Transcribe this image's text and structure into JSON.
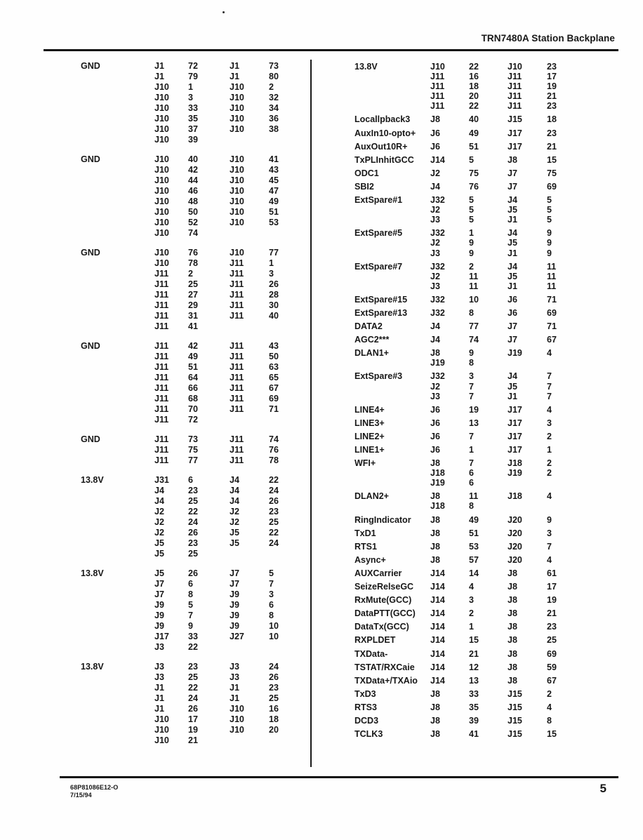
{
  "header": {
    "title": "TRN7480A Station Backplane"
  },
  "footer": {
    "doc_number": "68P81086E12-O",
    "date": "7/15/94",
    "page_number": "5"
  },
  "colors": {
    "text": "#171717",
    "background": "#fefefe",
    "rule": "#121212"
  },
  "pin_table": {
    "left_column": [
      {
        "label": "GND",
        "rows": [
          [
            "J1",
            "72",
            "J1",
            "73"
          ],
          [
            "J1",
            "79",
            "J1",
            "80"
          ],
          [
            "J10",
            "1",
            "J10",
            "2"
          ],
          [
            "J10",
            "3",
            "J10",
            "32"
          ],
          [
            "J10",
            "33",
            "J10",
            "34"
          ],
          [
            "J10",
            "35",
            "J10",
            "36"
          ],
          [
            "J10",
            "37",
            "J10",
            "38"
          ],
          [
            "J10",
            "39",
            "",
            ""
          ]
        ]
      },
      {
        "label": "GND",
        "rows": [
          [
            "J10",
            "40",
            "J10",
            "41"
          ],
          [
            "J10",
            "42",
            "J10",
            "43"
          ],
          [
            "J10",
            "44",
            "J10",
            "45"
          ],
          [
            "J10",
            "46",
            "J10",
            "47"
          ],
          [
            "J10",
            "48",
            "J10",
            "49"
          ],
          [
            "J10",
            "50",
            "J10",
            "51"
          ],
          [
            "J10",
            "52",
            "J10",
            "53"
          ],
          [
            "J10",
            "74",
            "",
            ""
          ]
        ]
      },
      {
        "label": "GND",
        "rows": [
          [
            "J10",
            "76",
            "J10",
            "77"
          ],
          [
            "J10",
            "78",
            "J11",
            "1"
          ],
          [
            "J11",
            "2",
            "J11",
            "3"
          ],
          [
            "J11",
            "25",
            "J11",
            "26"
          ],
          [
            "J11",
            "27",
            "J11",
            "28"
          ],
          [
            "J11",
            "29",
            "J11",
            "30"
          ],
          [
            "J11",
            "31",
            "J11",
            "40"
          ],
          [
            "J11",
            "41",
            "",
            ""
          ]
        ]
      },
      {
        "label": "GND",
        "rows": [
          [
            "J11",
            "42",
            "J11",
            "43"
          ],
          [
            "J11",
            "49",
            "J11",
            "50"
          ],
          [
            "J11",
            "51",
            "J11",
            "63"
          ],
          [
            "J11",
            "64",
            "J11",
            "65"
          ],
          [
            "J11",
            "66",
            "J11",
            "67"
          ],
          [
            "J11",
            "68",
            "J11",
            "69"
          ],
          [
            "J11",
            "70",
            "J11",
            "71"
          ],
          [
            "J11",
            "72",
            "",
            ""
          ]
        ]
      },
      {
        "label": "GND",
        "rows": [
          [
            "J11",
            "73",
            "J11",
            "74"
          ],
          [
            "J11",
            "75",
            "J11",
            "76"
          ],
          [
            "J11",
            "77",
            "J11",
            "78"
          ]
        ]
      },
      {
        "label": "13.8V",
        "rows": [
          [
            "J31",
            "6",
            "J4",
            "22"
          ],
          [
            "J4",
            "23",
            "J4",
            "24"
          ],
          [
            "J4",
            "25",
            "J4",
            "26"
          ],
          [
            "J2",
            "22",
            "J2",
            "23"
          ],
          [
            "J2",
            "24",
            "J2",
            "25"
          ],
          [
            "J2",
            "26",
            "J5",
            "22"
          ],
          [
            "J5",
            "23",
            "J5",
            "24"
          ],
          [
            "J5",
            "25",
            "",
            ""
          ]
        ]
      },
      {
        "label": "13.8V",
        "rows": [
          [
            "J5",
            "26",
            "J7",
            "5"
          ],
          [
            "J7",
            "6",
            "J7",
            "7"
          ],
          [
            "J7",
            "8",
            "J9",
            "3"
          ],
          [
            "J9",
            "5",
            "J9",
            "6"
          ],
          [
            "J9",
            "7",
            "J9",
            "8"
          ],
          [
            "J9",
            "9",
            "J9",
            "10"
          ],
          [
            "J17",
            "33",
            "J27",
            "10"
          ],
          [
            "J3",
            "22",
            "",
            ""
          ]
        ]
      },
      {
        "label": "13.8V",
        "rows": [
          [
            "J3",
            "23",
            "J3",
            "24"
          ],
          [
            "J3",
            "25",
            "J3",
            "26"
          ],
          [
            "J1",
            "22",
            "J1",
            "23"
          ],
          [
            "J1",
            "24",
            "J1",
            "25"
          ],
          [
            "J1",
            "26",
            "J10",
            "16"
          ],
          [
            "J10",
            "17",
            "J10",
            "18"
          ],
          [
            "J10",
            "19",
            "J10",
            "20"
          ],
          [
            "J10",
            "21",
            "",
            ""
          ]
        ]
      }
    ],
    "right_column": [
      {
        "label": "13.8V",
        "rows": [
          [
            "J10",
            "22",
            "J10",
            "23"
          ],
          [
            "J11",
            "16",
            "J11",
            "17"
          ],
          [
            "J11",
            "18",
            "J11",
            "19"
          ],
          [
            "J11",
            "20",
            "J11",
            "21"
          ],
          [
            "J11",
            "22",
            "J11",
            "23"
          ]
        ]
      },
      {
        "label": "Locallpback3",
        "rows": [
          [
            "J8",
            "40",
            "J15",
            "18"
          ]
        ]
      },
      {
        "label": "AuxIn10-opto+",
        "rows": [
          [
            "J6",
            "49",
            "J17",
            "23"
          ]
        ]
      },
      {
        "label": "AuxOut10R+",
        "rows": [
          [
            "J6",
            "51",
            "J17",
            "21"
          ]
        ]
      },
      {
        "label": "TxPLInhitGCC",
        "rows": [
          [
            "J14",
            "5",
            "J8",
            "15"
          ]
        ]
      },
      {
        "label": "ODC1",
        "rows": [
          [
            "J2",
            "75",
            "J7",
            "75"
          ]
        ]
      },
      {
        "label": "SBI2",
        "rows": [
          [
            "J4",
            "76",
            "J7",
            "69"
          ]
        ]
      },
      {
        "label": "ExtSpare#1",
        "rows": [
          [
            "J32",
            "5",
            "J4",
            "5"
          ],
          [
            "J2",
            "5",
            "J5",
            "5"
          ],
          [
            "J3",
            "5",
            "J1",
            "5"
          ]
        ]
      },
      {
        "label": "ExtSpare#5",
        "rows": [
          [
            "J32",
            "1",
            "J4",
            "9"
          ],
          [
            "J2",
            "9",
            "J5",
            "9"
          ],
          [
            "J3",
            "9",
            "J1",
            "9"
          ]
        ]
      },
      {
        "label": "ExtSpare#7",
        "rows": [
          [
            "J32",
            "2",
            "J4",
            "11"
          ],
          [
            "J2",
            "11",
            "J5",
            "11"
          ],
          [
            "J3",
            "11",
            "J1",
            "11"
          ]
        ]
      },
      {
        "label": "ExtSpare#15",
        "rows": [
          [
            "J32",
            "10",
            "J6",
            "71"
          ]
        ]
      },
      {
        "label": "ExtSpare#13",
        "rows": [
          [
            "J32",
            "8",
            "J6",
            "69"
          ]
        ]
      },
      {
        "label": "DATA2",
        "rows": [
          [
            "J4",
            "77",
            "J7",
            "71"
          ]
        ]
      },
      {
        "label": "AGC2***",
        "rows": [
          [
            "J4",
            "74",
            "J7",
            "67"
          ]
        ]
      },
      {
        "label": "DLAN1+",
        "rows": [
          [
            "J8",
            "9",
            "J19",
            "4"
          ],
          [
            "J19",
            "8",
            "",
            ""
          ]
        ]
      },
      {
        "label": "ExtSpare#3",
        "rows": [
          [
            "J32",
            "3",
            "J4",
            "7"
          ],
          [
            "J2",
            "7",
            "J5",
            "7"
          ],
          [
            "J3",
            "7",
            "J1",
            "7"
          ]
        ]
      },
      {
        "label": "LINE4+",
        "rows": [
          [
            "J6",
            "19",
            "J17",
            "4"
          ]
        ]
      },
      {
        "label": "LINE3+",
        "rows": [
          [
            "J6",
            "13",
            "J17",
            "3"
          ]
        ]
      },
      {
        "label": "LINE2+",
        "rows": [
          [
            "J6",
            "7",
            "J17",
            "2"
          ]
        ]
      },
      {
        "label": "LINE1+",
        "rows": [
          [
            "J6",
            "1",
            "J17",
            "1"
          ]
        ]
      },
      {
        "label": "WFI+",
        "rows": [
          [
            "J8",
            "7",
            "J18",
            "2"
          ],
          [
            "J18",
            "6",
            "J19",
            "2"
          ],
          [
            "J19",
            "6",
            "",
            ""
          ]
        ]
      },
      {
        "label": "DLAN2+",
        "rows": [
          [
            "J8",
            "11",
            "J18",
            "4"
          ],
          [
            "J18",
            "8",
            "",
            ""
          ]
        ]
      },
      {
        "label": "RingIndicator",
        "rows": [
          [
            "J8",
            "49",
            "J20",
            "9"
          ]
        ]
      },
      {
        "label": "TxD1",
        "rows": [
          [
            "J8",
            "51",
            "J20",
            "3"
          ]
        ]
      },
      {
        "label": "RTS1",
        "rows": [
          [
            "J8",
            "53",
            "J20",
            "7"
          ]
        ]
      },
      {
        "label": "Async+",
        "rows": [
          [
            "J8",
            "57",
            "J20",
            "4"
          ]
        ]
      },
      {
        "label": "AUXCarrier",
        "rows": [
          [
            "J14",
            "14",
            "J8",
            "61"
          ]
        ]
      },
      {
        "label": "SeizeRelseGC",
        "rows": [
          [
            "J14",
            "4",
            "J8",
            "17"
          ]
        ]
      },
      {
        "label": "RxMute(GCC)",
        "rows": [
          [
            "J14",
            "3",
            "J8",
            "19"
          ]
        ]
      },
      {
        "label": "DataPTT(GCC)",
        "rows": [
          [
            "J14",
            "2",
            "J8",
            "21"
          ]
        ]
      },
      {
        "label": "DataTx(GCC)",
        "rows": [
          [
            "J14",
            "1",
            "J8",
            "23"
          ]
        ]
      },
      {
        "label": "RXPLDET",
        "rows": [
          [
            "J14",
            "15",
            "J8",
            "25"
          ]
        ]
      },
      {
        "label": "TXData-",
        "rows": [
          [
            "J14",
            "21",
            "J8",
            "69"
          ]
        ]
      },
      {
        "label": "TSTAT/RXCaie",
        "rows": [
          [
            "J14",
            "12",
            "J8",
            "59"
          ]
        ]
      },
      {
        "label": "TXData+/TXAio",
        "rows": [
          [
            "J14",
            "13",
            "J8",
            "67"
          ]
        ]
      },
      {
        "label": "TxD3",
        "rows": [
          [
            "J8",
            "33",
            "J15",
            "2"
          ]
        ]
      },
      {
        "label": "RTS3",
        "rows": [
          [
            "J8",
            "35",
            "J15",
            "4"
          ]
        ]
      },
      {
        "label": "DCD3",
        "rows": [
          [
            "J8",
            "39",
            "J15",
            "8"
          ]
        ]
      },
      {
        "label": "TCLK3",
        "rows": [
          [
            "J8",
            "41",
            "J15",
            "15"
          ]
        ]
      }
    ]
  }
}
